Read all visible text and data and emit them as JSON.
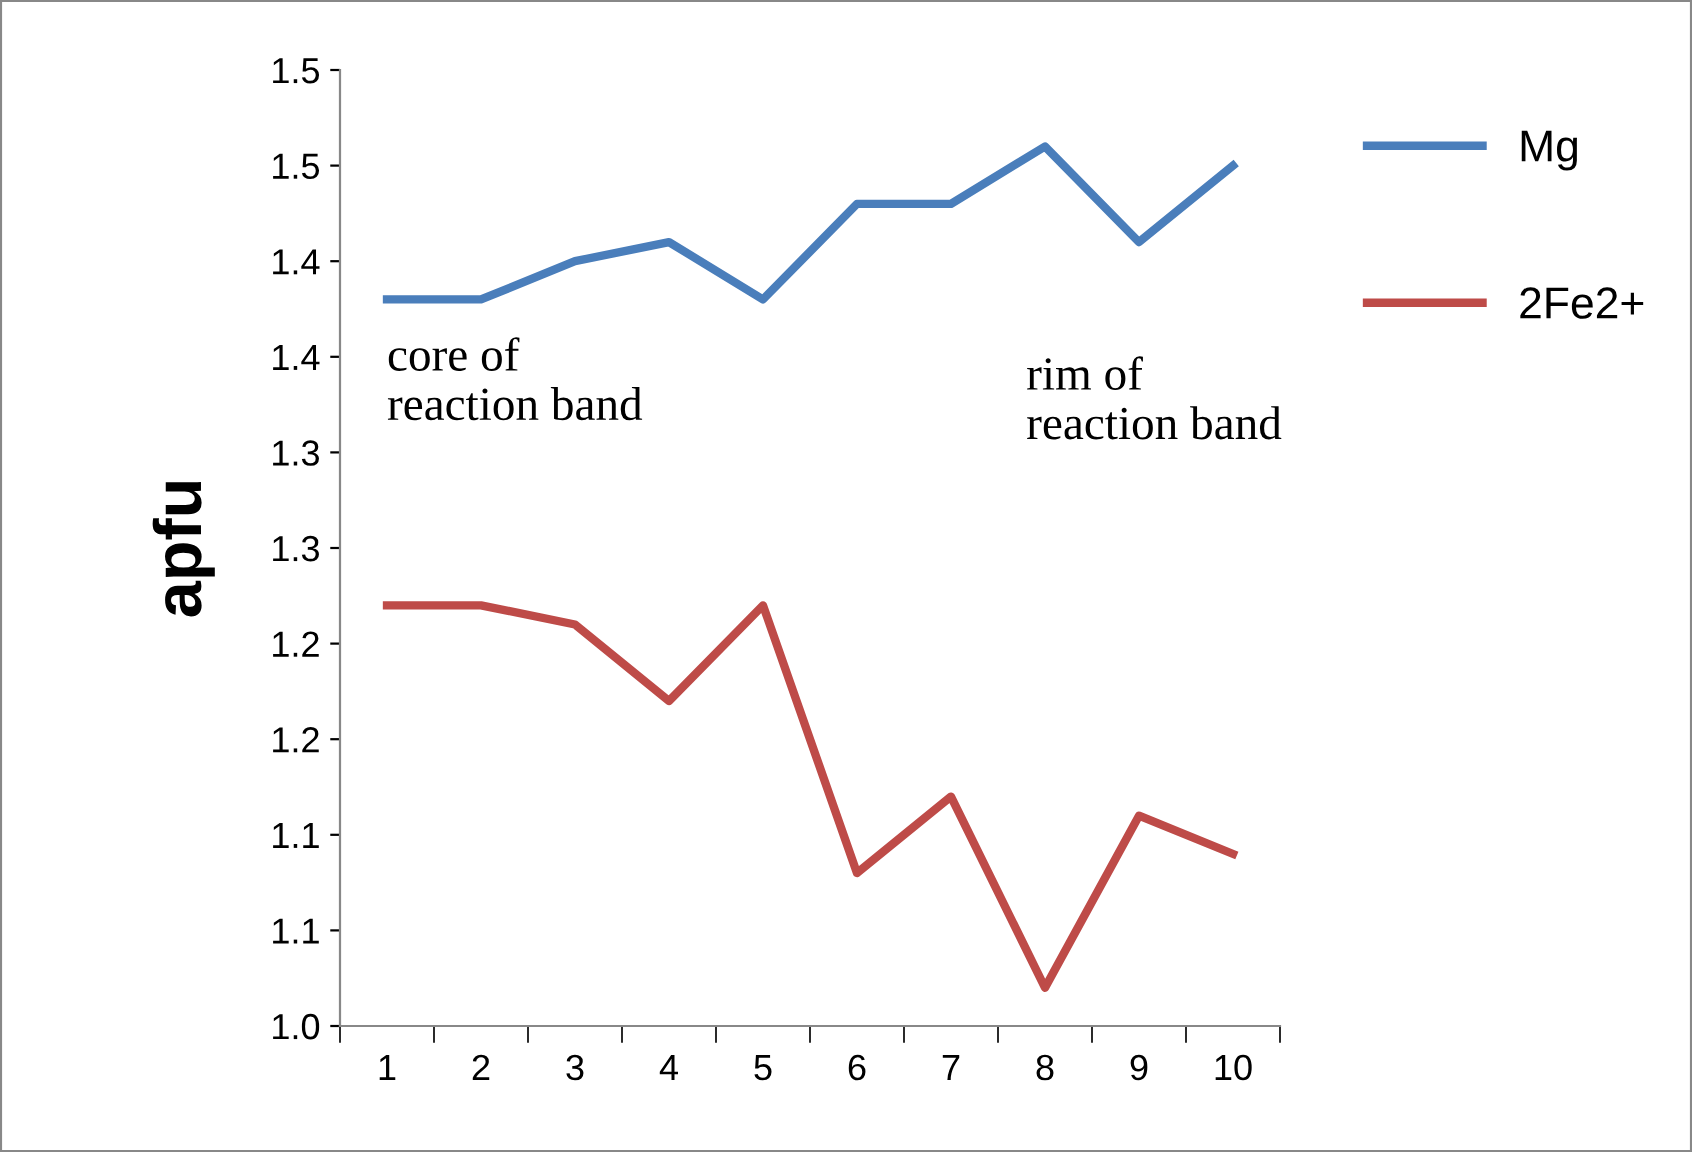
{
  "chart_data": {
    "type": "line",
    "ylabel": "apfu",
    "categories": [
      "1",
      "2",
      "3",
      "4",
      "5",
      "6",
      "7",
      "8",
      "9",
      "10"
    ],
    "series": [
      {
        "name": "Mg",
        "color": "#4a7ebb",
        "values": [
          1.38,
          1.38,
          1.4,
          1.41,
          1.38,
          1.43,
          1.43,
          1.46,
          1.41,
          1.45
        ]
      },
      {
        "name": "2Fe2+",
        "color": "#be4b48",
        "values": [
          1.22,
          1.22,
          1.21,
          1.17,
          1.22,
          1.08,
          1.12,
          1.02,
          1.11,
          1.09
        ]
      }
    ],
    "ylim": [
      1.0,
      1.5
    ],
    "yticks": [
      {
        "value": 1.0,
        "label": "1.0"
      },
      {
        "value": 1.05,
        "label": "1.1"
      },
      {
        "value": 1.1,
        "label": "1.1"
      },
      {
        "value": 1.15,
        "label": "1.2"
      },
      {
        "value": 1.2,
        "label": "1.2"
      },
      {
        "value": 1.25,
        "label": "1.3"
      },
      {
        "value": 1.3,
        "label": "1.3"
      },
      {
        "value": 1.35,
        "label": "1.4"
      },
      {
        "value": 1.4,
        "label": "1.4"
      },
      {
        "value": 1.45,
        "label": "1.5"
      },
      {
        "value": 1.5,
        "label": "1.5"
      }
    ],
    "annotations": [
      "core of\nreaction band",
      "rim of\nreaction band"
    ],
    "grid": false,
    "legend": "top right",
    "marker": "none",
    "line_style": "solid"
  }
}
